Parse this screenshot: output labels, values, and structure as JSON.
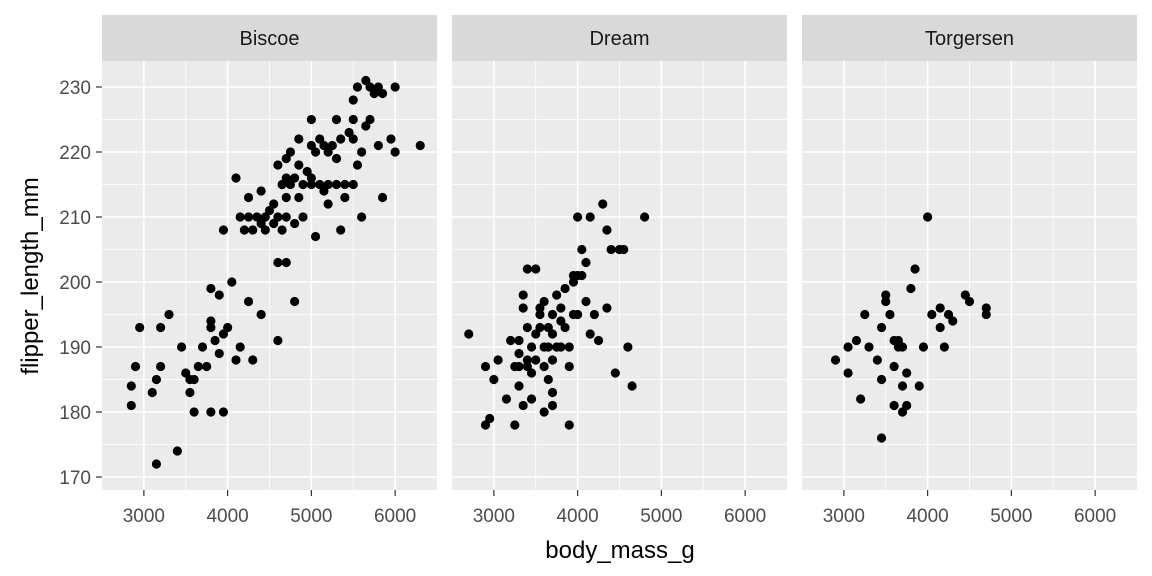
{
  "chart_data": {
    "type": "scatter",
    "facet_by": "island",
    "xlabel": "body_mass_g",
    "ylabel": "flipper_length_mm",
    "xlim": [
      2500,
      6500
    ],
    "ylim": [
      168,
      234
    ],
    "x_ticks": [
      3000,
      4000,
      5000,
      6000
    ],
    "y_ticks": [
      170,
      180,
      190,
      200,
      210,
      220,
      230
    ],
    "grid": true,
    "point_color": "#000000",
    "panel_background": "#ebebeb",
    "strip_background": "#d9d9d9",
    "panels": [
      {
        "label": "Biscoe",
        "points": [
          [
            3150,
            172
          ],
          [
            3400,
            174
          ],
          [
            2850,
            181
          ],
          [
            2850,
            184
          ],
          [
            2900,
            187
          ],
          [
            2950,
            193
          ],
          [
            3100,
            183
          ],
          [
            3150,
            185
          ],
          [
            3200,
            187
          ],
          [
            3200,
            193
          ],
          [
            3300,
            195
          ],
          [
            3450,
            190
          ],
          [
            3500,
            186
          ],
          [
            3550,
            185
          ],
          [
            3550,
            183
          ],
          [
            3600,
            180
          ],
          [
            3650,
            187
          ],
          [
            3600,
            185
          ],
          [
            3700,
            190
          ],
          [
            3750,
            187
          ],
          [
            3800,
            193
          ],
          [
            3800,
            194
          ],
          [
            3800,
            180
          ],
          [
            3800,
            199
          ],
          [
            3850,
            191
          ],
          [
            3900,
            198
          ],
          [
            3900,
            189
          ],
          [
            3950,
            192
          ],
          [
            3950,
            180
          ],
          [
            4000,
            193
          ],
          [
            4050,
            200
          ],
          [
            4100,
            188
          ],
          [
            4150,
            190
          ],
          [
            4250,
            197
          ],
          [
            4300,
            188
          ],
          [
            4400,
            195
          ],
          [
            4600,
            191
          ],
          [
            4800,
            197
          ],
          [
            3950,
            208
          ],
          [
            4100,
            216
          ],
          [
            4150,
            210
          ],
          [
            4200,
            208
          ],
          [
            4250,
            210
          ],
          [
            4250,
            213
          ],
          [
            4300,
            208
          ],
          [
            4350,
            210
          ],
          [
            4400,
            209
          ],
          [
            4400,
            214
          ],
          [
            4450,
            210
          ],
          [
            4450,
            208
          ],
          [
            4500,
            211
          ],
          [
            4550,
            212
          ],
          [
            4550,
            209
          ],
          [
            4600,
            218
          ],
          [
            4600,
            210
          ],
          [
            4600,
            203
          ],
          [
            4650,
            215
          ],
          [
            4650,
            208
          ],
          [
            4700,
            219
          ],
          [
            4700,
            216
          ],
          [
            4700,
            213
          ],
          [
            4700,
            210
          ],
          [
            4700,
            203
          ],
          [
            4750,
            215
          ],
          [
            4750,
            220
          ],
          [
            4800,
            209
          ],
          [
            4800,
            216
          ],
          [
            4850,
            222
          ],
          [
            4850,
            218
          ],
          [
            4850,
            213
          ],
          [
            4900,
            215
          ],
          [
            4900,
            210
          ],
          [
            4950,
            217
          ],
          [
            5000,
            225
          ],
          [
            5000,
            221
          ],
          [
            5000,
            216
          ],
          [
            5000,
            215
          ],
          [
            5050,
            220
          ],
          [
            5050,
            207
          ],
          [
            5100,
            222
          ],
          [
            5100,
            215
          ],
          [
            5150,
            221
          ],
          [
            5150,
            214
          ],
          [
            5200,
            220
          ],
          [
            5200,
            215
          ],
          [
            5200,
            212
          ],
          [
            5250,
            221
          ],
          [
            5300,
            219
          ],
          [
            5300,
            225
          ],
          [
            5300,
            215
          ],
          [
            5350,
            222
          ],
          [
            5350,
            208
          ],
          [
            5400,
            215
          ],
          [
            5400,
            213
          ],
          [
            5450,
            223
          ],
          [
            5500,
            228
          ],
          [
            5500,
            225
          ],
          [
            5500,
            222
          ],
          [
            5500,
            215
          ],
          [
            5550,
            230
          ],
          [
            5550,
            218
          ],
          [
            5600,
            220
          ],
          [
            5600,
            210
          ],
          [
            5650,
            231
          ],
          [
            5650,
            224
          ],
          [
            5700,
            225
          ],
          [
            5700,
            230
          ],
          [
            5750,
            229
          ],
          [
            5800,
            230
          ],
          [
            5800,
            221
          ],
          [
            5850,
            213
          ],
          [
            5850,
            229
          ],
          [
            5950,
            222
          ],
          [
            6000,
            220
          ],
          [
            6000,
            230
          ],
          [
            6300,
            221
          ]
        ]
      },
      {
        "label": "Dream",
        "points": [
          [
            2700,
            192
          ],
          [
            2900,
            187
          ],
          [
            2900,
            178
          ],
          [
            2950,
            179
          ],
          [
            3000,
            185
          ],
          [
            3050,
            188
          ],
          [
            3150,
            182
          ],
          [
            3200,
            191
          ],
          [
            3250,
            178
          ],
          [
            3250,
            187
          ],
          [
            3300,
            191
          ],
          [
            3300,
            189
          ],
          [
            3300,
            184
          ],
          [
            3300,
            187
          ],
          [
            3350,
            198
          ],
          [
            3350,
            181
          ],
          [
            3350,
            196
          ],
          [
            3400,
            202
          ],
          [
            3400,
            193
          ],
          [
            3400,
            188
          ],
          [
            3400,
            187
          ],
          [
            3450,
            190
          ],
          [
            3450,
            182
          ],
          [
            3450,
            186
          ],
          [
            3500,
            188
          ],
          [
            3500,
            192
          ],
          [
            3500,
            202
          ],
          [
            3550,
            193
          ],
          [
            3550,
            195
          ],
          [
            3550,
            196
          ],
          [
            3600,
            187
          ],
          [
            3600,
            190
          ],
          [
            3600,
            197
          ],
          [
            3600,
            180
          ],
          [
            3650,
            193
          ],
          [
            3650,
            190
          ],
          [
            3650,
            185
          ],
          [
            3700,
            192
          ],
          [
            3700,
            195
          ],
          [
            3700,
            188
          ],
          [
            3700,
            181
          ],
          [
            3700,
            183
          ],
          [
            3750,
            198
          ],
          [
            3750,
            190
          ],
          [
            3800,
            194
          ],
          [
            3800,
            196
          ],
          [
            3800,
            190
          ],
          [
            3850,
            199
          ],
          [
            3850,
            193
          ],
          [
            3900,
            190
          ],
          [
            3900,
            187
          ],
          [
            3900,
            178
          ],
          [
            3950,
            201
          ],
          [
            3950,
            195
          ],
          [
            3950,
            200
          ],
          [
            4000,
            210
          ],
          [
            4000,
            201
          ],
          [
            4000,
            195
          ],
          [
            4050,
            205
          ],
          [
            4050,
            201
          ],
          [
            4100,
            203
          ],
          [
            4100,
            197
          ],
          [
            4150,
            210
          ],
          [
            4150,
            192
          ],
          [
            4200,
            195
          ],
          [
            4250,
            191
          ],
          [
            4300,
            212
          ],
          [
            4350,
            208
          ],
          [
            4350,
            196
          ],
          [
            4400,
            205
          ],
          [
            4450,
            186
          ],
          [
            4500,
            205
          ],
          [
            4550,
            205
          ],
          [
            4600,
            190
          ],
          [
            4650,
            184
          ],
          [
            4800,
            210
          ]
        ]
      },
      {
        "label": "Torgersen",
        "points": [
          [
            2900,
            188
          ],
          [
            3050,
            186
          ],
          [
            3050,
            190
          ],
          [
            3150,
            191
          ],
          [
            3200,
            182
          ],
          [
            3250,
            195
          ],
          [
            3300,
            190
          ],
          [
            3400,
            188
          ],
          [
            3450,
            185
          ],
          [
            3450,
            176
          ],
          [
            3450,
            193
          ],
          [
            3500,
            197
          ],
          [
            3500,
            198
          ],
          [
            3550,
            195
          ],
          [
            3600,
            191
          ],
          [
            3600,
            187
          ],
          [
            3600,
            181
          ],
          [
            3650,
            190
          ],
          [
            3650,
            191
          ],
          [
            3700,
            190
          ],
          [
            3700,
            184
          ],
          [
            3700,
            180
          ],
          [
            3750,
            181
          ],
          [
            3750,
            186
          ],
          [
            3800,
            199
          ],
          [
            3850,
            202
          ],
          [
            3900,
            184
          ],
          [
            3950,
            190
          ],
          [
            4000,
            210
          ],
          [
            4050,
            195
          ],
          [
            4150,
            196
          ],
          [
            4150,
            193
          ],
          [
            4200,
            190
          ],
          [
            4250,
            195
          ],
          [
            4300,
            194
          ],
          [
            4450,
            198
          ],
          [
            4500,
            197
          ],
          [
            4700,
            195
          ],
          [
            4700,
            196
          ]
        ]
      }
    ]
  }
}
